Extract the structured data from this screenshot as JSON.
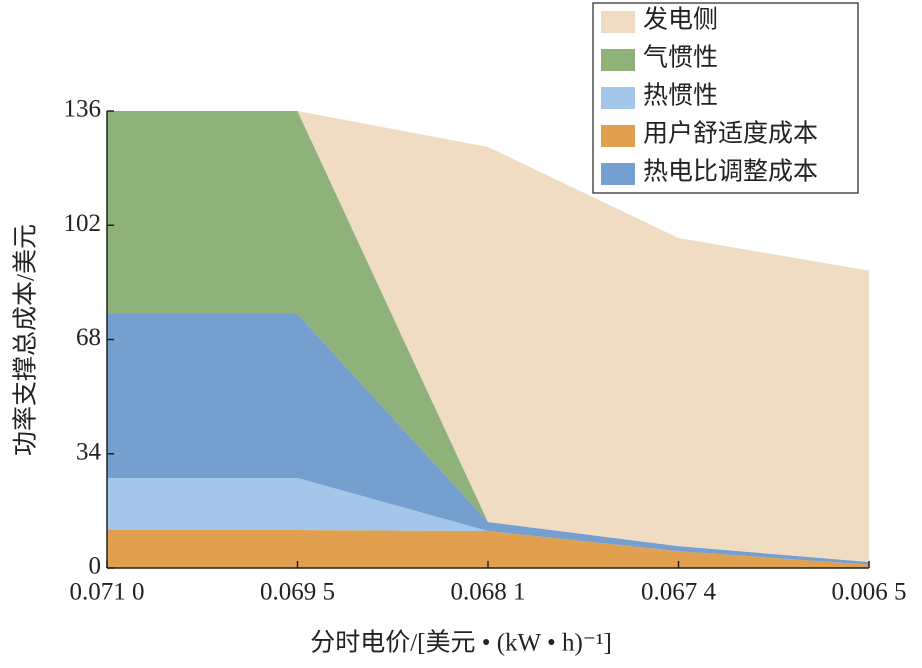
{
  "chart_data": {
    "type": "stacked_area",
    "xlabel": "分时电价/[美元 • (kW • h)⁻¹]",
    "ylabel": "功率支撑总成本/美元",
    "categories": [
      "0.071 0",
      "0.069 5",
      "0.068 1",
      "0.067 4",
      "0.006 5"
    ],
    "ylim": [
      0,
      136
    ],
    "yticks": [
      0,
      34,
      68,
      102,
      136
    ],
    "series": [
      {
        "name": "用户舒适度成本",
        "color": "#e0a050",
        "values": [
          11.3,
          11.3,
          11,
          5,
          1
        ]
      },
      {
        "name": "热惯性",
        "color": "#a4c6e8",
        "values": [
          15.5,
          15.5,
          0,
          0,
          0
        ]
      },
      {
        "name": "热电比调整成本",
        "color": "#749fcf",
        "values": [
          48.8,
          48.8,
          2.7,
          1.5,
          0.8
        ]
      },
      {
        "name": "气惯性",
        "color": "#8fb27b",
        "values": [
          60.4,
          60.4,
          0,
          0,
          0
        ]
      },
      {
        "name": "发电侧",
        "color": "#f0dcc3",
        "values": [
          0,
          0,
          111.6,
          91.7,
          86.7
        ]
      }
    ]
  }
}
